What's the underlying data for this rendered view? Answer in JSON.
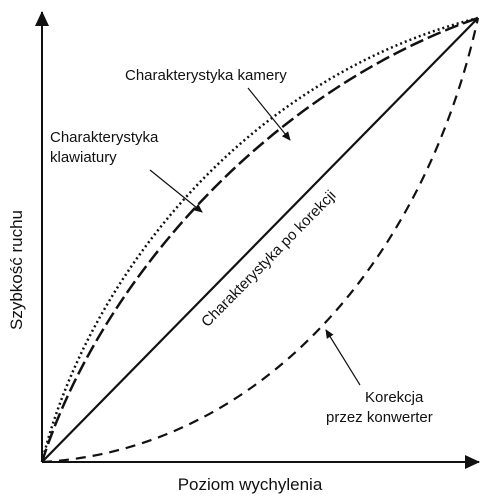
{
  "axes": {
    "x_label": "Poziom wychylenia",
    "y_label": "Szybkość ruchu"
  },
  "curves": [
    {
      "label": [
        "Charakterystyka kamery"
      ]
    },
    {
      "label": [
        "Charakterystyka",
        "klawiatury"
      ]
    },
    {
      "label": [
        "Charakterystyka po korekcji"
      ]
    },
    {
      "label": [
        "Korekcja",
        "przez konwerter"
      ]
    }
  ]
}
